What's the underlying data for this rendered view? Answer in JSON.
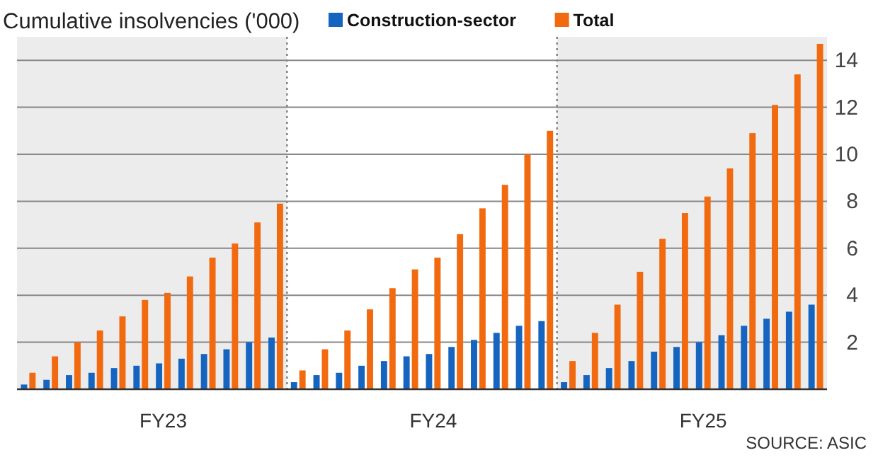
{
  "chart_data": {
    "type": "bar",
    "title": "Cumulative insolvencies ('000)",
    "categories": [
      null,
      null,
      null,
      null,
      null,
      null,
      "FY23",
      null,
      null,
      null,
      null,
      null,
      null,
      null,
      null,
      null,
      null,
      null,
      "FY24",
      null,
      null,
      null,
      null,
      null,
      null,
      null,
      null,
      null,
      null,
      null,
      "FY25",
      null,
      null,
      null,
      null,
      null
    ],
    "series": [
      {
        "name": "Construction-sector",
        "color": "#1565c0",
        "values": [
          0.2,
          0.4,
          0.6,
          0.7,
          0.9,
          1.0,
          1.1,
          1.3,
          1.5,
          1.7,
          2.0,
          2.2,
          0.3,
          0.6,
          0.7,
          1.0,
          1.2,
          1.4,
          1.5,
          1.8,
          2.1,
          2.4,
          2.7,
          2.9,
          0.3,
          0.6,
          0.9,
          1.2,
          1.6,
          1.8,
          2.0,
          2.3,
          2.7,
          3.0,
          3.3,
          3.6
        ]
      },
      {
        "name": "Total",
        "color": "#f26a10",
        "values": [
          0.7,
          1.4,
          2.0,
          2.5,
          3.1,
          3.8,
          4.1,
          4.8,
          5.6,
          6.2,
          7.1,
          7.9,
          0.8,
          1.7,
          2.5,
          3.4,
          4.3,
          5.1,
          5.6,
          6.6,
          7.7,
          8.7,
          10.0,
          11.0,
          1.2,
          2.4,
          3.6,
          5.0,
          6.4,
          7.5,
          8.2,
          9.4,
          10.9,
          12.1,
          13.4,
          14.7
        ]
      }
    ],
    "ylim": [
      0,
      15
    ],
    "yticks": [
      2,
      4,
      6,
      8,
      10,
      12,
      14
    ],
    "grid": "y",
    "legend": "top",
    "annotations": [
      "SOURCE: ASIC"
    ]
  }
}
